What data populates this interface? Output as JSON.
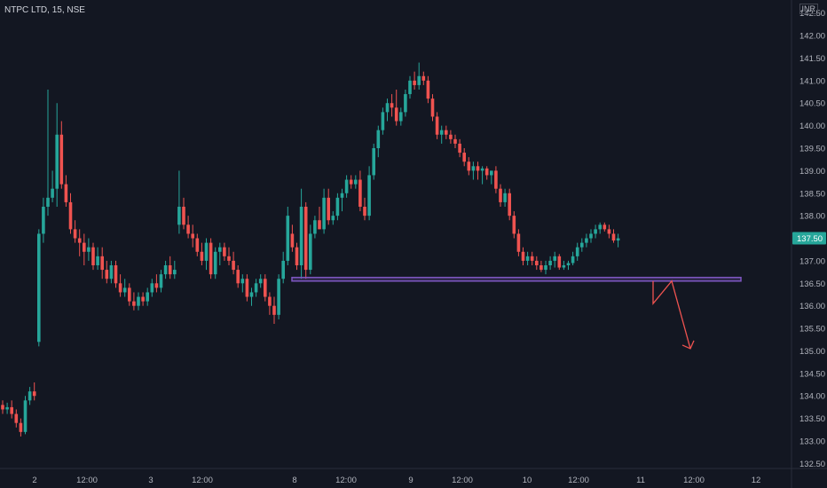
{
  "header": {
    "symbol_label": "NTPC LTD, 15, NSE",
    "currency": "INR"
  },
  "colors": {
    "background": "#131722",
    "up": "#26a69a",
    "down": "#ef5350",
    "zone": "#7e57c2",
    "arrow": "#ef5350",
    "price_tag": "#26a69a"
  },
  "chart_data": {
    "type": "candlestick",
    "y_axis": {
      "ticks": [
        132.5,
        133.0,
        133.5,
        134.0,
        134.5,
        135.0,
        135.5,
        136.0,
        136.5,
        137.0,
        137.5,
        138.0,
        138.5,
        139.0,
        139.5,
        140.0,
        140.5,
        141.0,
        141.5,
        142.0,
        142.5
      ],
      "ylim": [
        132.35,
        142.75
      ]
    },
    "x_axis": {
      "ticks": [
        "2",
        "12:00",
        "3",
        "12:00",
        "8",
        "12:00",
        "9",
        "12:00",
        "10",
        "12:00",
        "11",
        "12:00",
        "12"
      ]
    },
    "last_price": "137.50",
    "support_zone": {
      "low": 136.55,
      "high": 136.63
    },
    "projected_path": [
      [
        0,
        136.55
      ],
      [
        0,
        136.05
      ],
      [
        1,
        136.55
      ],
      [
        2,
        135.05
      ]
    ],
    "candles": [
      [
        133.8,
        133.9,
        133.6,
        133.7
      ],
      [
        133.7,
        133.85,
        133.6,
        133.75
      ],
      [
        133.75,
        133.9,
        133.5,
        133.6
      ],
      [
        133.6,
        133.7,
        133.3,
        133.4
      ],
      [
        133.4,
        133.5,
        133.1,
        133.2
      ],
      [
        133.2,
        134.0,
        133.15,
        133.9
      ],
      [
        133.9,
        134.2,
        133.8,
        134.1
      ],
      [
        134.1,
        134.3,
        133.9,
        134.0
      ],
      [
        135.2,
        137.7,
        135.1,
        137.6
      ],
      [
        137.6,
        138.4,
        137.4,
        138.2
      ],
      [
        138.2,
        140.8,
        138.0,
        138.4
      ],
      [
        138.4,
        139.0,
        138.3,
        138.6
      ],
      [
        138.6,
        140.5,
        138.2,
        139.8
      ],
      [
        139.8,
        140.1,
        138.6,
        138.7
      ],
      [
        138.7,
        138.9,
        138.2,
        138.3
      ],
      [
        138.3,
        138.5,
        137.6,
        137.7
      ],
      [
        137.7,
        137.9,
        137.4,
        137.5
      ],
      [
        137.5,
        137.7,
        137.1,
        137.4
      ],
      [
        137.4,
        137.6,
        136.9,
        137.2
      ],
      [
        137.2,
        137.5,
        137.0,
        137.3
      ],
      [
        137.3,
        137.4,
        136.8,
        136.9
      ],
      [
        136.9,
        137.3,
        136.8,
        137.1
      ],
      [
        137.1,
        137.3,
        136.6,
        136.8
      ],
      [
        136.8,
        137.0,
        136.5,
        136.6
      ],
      [
        136.6,
        137.0,
        136.5,
        136.9
      ],
      [
        136.9,
        137.0,
        136.4,
        136.5
      ],
      [
        136.5,
        136.7,
        136.2,
        136.3
      ],
      [
        136.3,
        136.6,
        136.2,
        136.4
      ],
      [
        136.4,
        136.5,
        136.0,
        136.1
      ],
      [
        136.1,
        136.3,
        135.9,
        136.0
      ],
      [
        136.0,
        136.3,
        135.9,
        136.2
      ],
      [
        136.2,
        136.3,
        136.0,
        136.1
      ],
      [
        136.1,
        136.4,
        136.0,
        136.3
      ],
      [
        136.3,
        136.6,
        136.2,
        136.5
      ],
      [
        136.5,
        136.7,
        136.3,
        136.4
      ],
      [
        136.4,
        136.8,
        136.3,
        136.7
      ],
      [
        136.7,
        137.0,
        136.6,
        136.9
      ],
      [
        136.9,
        137.1,
        136.6,
        136.7
      ],
      [
        136.7,
        137.0,
        136.6,
        136.8
      ],
      [
        137.8,
        139.0,
        137.6,
        138.2
      ],
      [
        138.2,
        138.4,
        137.7,
        137.8
      ],
      [
        137.8,
        138.0,
        137.5,
        137.6
      ],
      [
        137.6,
        137.8,
        137.3,
        137.5
      ],
      [
        137.5,
        137.6,
        137.1,
        137.2
      ],
      [
        137.2,
        137.4,
        136.9,
        137.0
      ],
      [
        137.0,
        137.5,
        136.8,
        137.4
      ],
      [
        137.4,
        137.5,
        136.6,
        136.7
      ],
      [
        136.7,
        137.3,
        136.6,
        137.2
      ],
      [
        137.2,
        137.4,
        136.9,
        137.3
      ],
      [
        137.3,
        137.4,
        137.0,
        137.1
      ],
      [
        137.1,
        137.3,
        136.9,
        137.0
      ],
      [
        137.0,
        137.2,
        136.7,
        136.8
      ],
      [
        136.8,
        136.9,
        136.4,
        136.5
      ],
      [
        136.5,
        136.7,
        136.3,
        136.6
      ],
      [
        136.6,
        136.7,
        136.1,
        136.2
      ],
      [
        136.2,
        136.4,
        136.0,
        136.3
      ],
      [
        136.3,
        136.6,
        136.2,
        136.5
      ],
      [
        136.5,
        136.7,
        136.4,
        136.6
      ],
      [
        136.6,
        136.7,
        136.1,
        136.2
      ],
      [
        136.2,
        136.3,
        135.8,
        136.0
      ],
      [
        136.0,
        136.2,
        135.6,
        135.8
      ],
      [
        135.8,
        136.7,
        135.7,
        136.6
      ],
      [
        136.6,
        137.2,
        136.5,
        137.0
      ],
      [
        137.0,
        138.2,
        136.9,
        138.0
      ],
      [
        137.6,
        137.8,
        137.2,
        137.3
      ],
      [
        137.3,
        137.4,
        136.8,
        136.9
      ],
      [
        136.9,
        138.6,
        136.6,
        138.2
      ],
      [
        138.2,
        138.3,
        136.6,
        136.8
      ],
      [
        136.8,
        137.8,
        136.7,
        137.6
      ],
      [
        137.6,
        138.0,
        137.5,
        137.9
      ],
      [
        137.9,
        138.2,
        137.7,
        137.7
      ],
      [
        137.7,
        138.6,
        137.6,
        138.4
      ],
      [
        138.4,
        138.6,
        137.8,
        137.9
      ],
      [
        137.9,
        138.1,
        137.8,
        138.0
      ],
      [
        138.0,
        138.5,
        137.9,
        138.4
      ],
      [
        138.4,
        138.6,
        138.1,
        138.5
      ],
      [
        138.5,
        138.9,
        138.4,
        138.8
      ],
      [
        138.8,
        138.9,
        138.6,
        138.7
      ],
      [
        138.7,
        138.9,
        138.6,
        138.8
      ],
      [
        138.8,
        139.0,
        138.1,
        138.2
      ],
      [
        138.2,
        138.4,
        137.9,
        138.0
      ],
      [
        138.0,
        139.1,
        137.9,
        138.9
      ],
      [
        138.9,
        139.6,
        138.8,
        139.5
      ],
      [
        139.5,
        140.0,
        139.3,
        139.9
      ],
      [
        139.9,
        140.4,
        139.8,
        140.3
      ],
      [
        140.3,
        140.6,
        140.1,
        140.5
      ],
      [
        140.5,
        140.7,
        140.2,
        140.4
      ],
      [
        140.4,
        140.8,
        140.0,
        140.1
      ],
      [
        140.1,
        140.4,
        140.0,
        140.3
      ],
      [
        140.3,
        140.8,
        140.2,
        140.7
      ],
      [
        140.7,
        141.1,
        140.6,
        141.0
      ],
      [
        141.0,
        141.2,
        140.8,
        140.9
      ],
      [
        140.9,
        141.4,
        140.8,
        141.1
      ],
      [
        141.1,
        141.2,
        140.9,
        141.0
      ],
      [
        141.0,
        141.1,
        140.5,
        140.6
      ],
      [
        140.6,
        140.7,
        140.1,
        140.2
      ],
      [
        140.2,
        140.3,
        139.7,
        139.8
      ],
      [
        139.8,
        140.0,
        139.6,
        139.9
      ],
      [
        139.9,
        140.0,
        139.7,
        139.8
      ],
      [
        139.8,
        139.9,
        139.6,
        139.7
      ],
      [
        139.7,
        139.8,
        139.5,
        139.6
      ],
      [
        139.6,
        139.7,
        139.3,
        139.4
      ],
      [
        139.4,
        139.5,
        139.1,
        139.2
      ],
      [
        139.2,
        139.3,
        138.9,
        139.0
      ],
      [
        139.0,
        139.2,
        138.8,
        139.1
      ],
      [
        139.1,
        139.2,
        138.8,
        139.0
      ],
      [
        139.0,
        139.1,
        138.7,
        139.05
      ],
      [
        139.05,
        139.1,
        138.8,
        138.9
      ],
      [
        138.9,
        139.0,
        138.7,
        139.0
      ],
      [
        139.0,
        139.1,
        138.5,
        138.6
      ],
      [
        138.6,
        138.7,
        138.2,
        138.3
      ],
      [
        138.3,
        138.6,
        138.2,
        138.5
      ],
      [
        138.5,
        138.6,
        137.9,
        138.0
      ],
      [
        138.0,
        138.1,
        137.5,
        137.6
      ],
      [
        137.6,
        137.7,
        137.1,
        137.2
      ],
      [
        137.2,
        137.3,
        136.9,
        137.0
      ],
      [
        137.0,
        137.2,
        136.9,
        137.1
      ],
      [
        137.1,
        137.2,
        136.9,
        137.0
      ],
      [
        137.0,
        137.1,
        136.8,
        136.9
      ],
      [
        136.9,
        137.0,
        136.75,
        136.8
      ],
      [
        136.8,
        137.0,
        136.7,
        136.9
      ],
      [
        136.9,
        137.1,
        136.8,
        137.0
      ],
      [
        137.0,
        137.2,
        136.85,
        137.1
      ],
      [
        137.1,
        137.15,
        136.8,
        136.85
      ],
      [
        136.85,
        137.0,
        136.8,
        136.9
      ],
      [
        136.9,
        137.0,
        136.8,
        136.95
      ],
      [
        136.95,
        137.2,
        136.9,
        137.1
      ],
      [
        137.1,
        137.4,
        137.0,
        137.3
      ],
      [
        137.3,
        137.5,
        137.2,
        137.4
      ],
      [
        137.4,
        137.6,
        137.3,
        137.5
      ],
      [
        137.5,
        137.7,
        137.4,
        137.6
      ],
      [
        137.6,
        137.8,
        137.5,
        137.7
      ],
      [
        137.7,
        137.85,
        137.6,
        137.8
      ],
      [
        137.8,
        137.85,
        137.65,
        137.7
      ],
      [
        137.7,
        137.8,
        137.5,
        137.6
      ],
      [
        137.6,
        137.7,
        137.4,
        137.45
      ],
      [
        137.45,
        137.6,
        137.3,
        137.5
      ]
    ]
  }
}
